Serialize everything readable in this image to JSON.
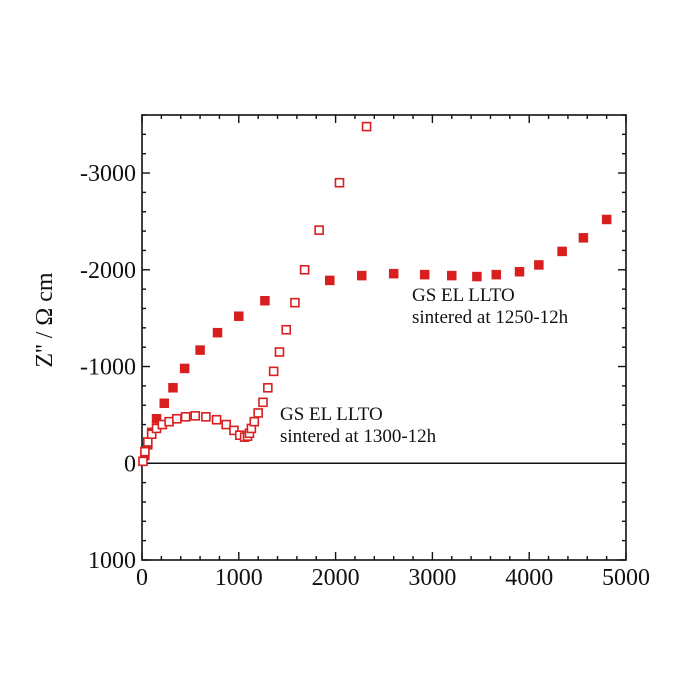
{
  "chart_data": {
    "type": "scatter",
    "title": "",
    "xlabel": "",
    "ylabel": "Z'' / Ω cm",
    "xlim": [
      0,
      5000
    ],
    "ylim": [
      1000,
      -3600
    ],
    "xticks": [
      0,
      1000,
      2000,
      3000,
      4000,
      5000
    ],
    "xtick_labels": [
      "0",
      "1000",
      "2000",
      "3000",
      "4000",
      "5000"
    ],
    "yticks": [
      1000,
      0,
      -1000,
      -2000,
      -3000
    ],
    "ytick_labels": [
      "1000",
      "0",
      "-1000",
      "-2000",
      "-3000"
    ],
    "grid": false,
    "zero_line": 0,
    "series": [
      {
        "name": "",
        "marker": "filled-square",
        "color": "#d81e1e",
        "x": [
          30,
          60,
          100,
          150,
          230,
          320,
          440,
          600,
          780,
          1000,
          1270,
          1940,
          2270,
          2600,
          2920,
          3200,
          3460,
          3660,
          3900,
          4100,
          4340,
          4560,
          4800
        ],
        "y": [
          -80,
          -190,
          -320,
          -460,
          -620,
          -780,
          -980,
          -1170,
          -1350,
          -1520,
          -1680,
          -1890,
          -1940,
          -1960,
          -1950,
          -1940,
          -1930,
          -1950,
          -1980,
          -2050,
          -2190,
          -2330,
          -2520
        ]
      },
      {
        "name": "",
        "marker": "open-square",
        "color": "#d81e1e",
        "x": [
          10,
          30,
          60,
          100,
          150,
          210,
          280,
          360,
          450,
          550,
          660,
          770,
          870,
          950,
          1010,
          1060,
          1090,
          1110,
          1130,
          1160,
          1200,
          1250,
          1300,
          1360,
          1420,
          1490,
          1580,
          1680,
          1830,
          2040,
          2320
        ],
        "y": [
          -20,
          -120,
          -220,
          -300,
          -360,
          -400,
          -430,
          -460,
          -480,
          -490,
          -480,
          -450,
          -400,
          -340,
          -290,
          -270,
          -280,
          -310,
          -360,
          -430,
          -520,
          -630,
          -780,
          -950,
          -1150,
          -1380,
          -1660,
          -2000,
          -2410,
          -2900,
          -3480
        ]
      }
    ],
    "annotations": [
      {
        "lines": [
          "GS EL LLTO",
          "sintered at 1250-12h"
        ]
      },
      {
        "lines": [
          "GS EL LLTO",
          "sintered at 1300-12h"
        ]
      }
    ]
  }
}
